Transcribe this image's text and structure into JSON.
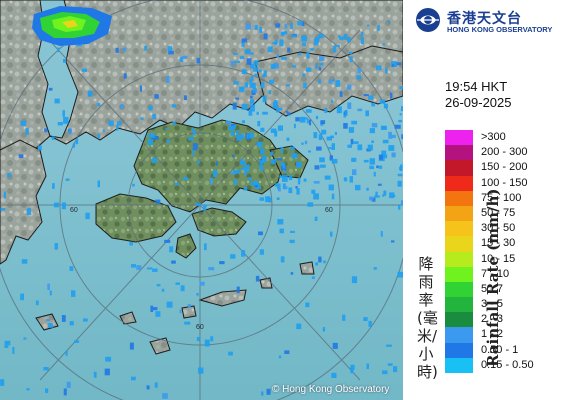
{
  "header": {
    "org_name_zh": "香港天文台",
    "org_name_en": "HONG KONG OBSERVATORY"
  },
  "timestamp": {
    "time": "19:54 HKT",
    "date": "26-09-2025"
  },
  "legend": {
    "title_zh": "降雨率(毫米/小時)",
    "title_en": "Rainfall Rate (mm/h)",
    "items": [
      {
        "label": ">300",
        "color": "#ee22ee"
      },
      {
        "label": "200 - 300",
        "color": "#b4127e"
      },
      {
        "label": "150 - 200",
        "color": "#c3182a"
      },
      {
        "label": "100 - 150",
        "color": "#ef2a1a"
      },
      {
        "label": "75 - 100",
        "color": "#f2750f"
      },
      {
        "label": "50 - 75",
        "color": "#f2a414"
      },
      {
        "label": "30 - 50",
        "color": "#f5c31a"
      },
      {
        "label": "15 - 30",
        "color": "#e8d51c"
      },
      {
        "label": "10 - 15",
        "color": "#b6ec1e"
      },
      {
        "label": "7 - 10",
        "color": "#6ff21e"
      },
      {
        "label": "5 - 7",
        "color": "#30d234"
      },
      {
        "label": "3 - 5",
        "color": "#22b43c"
      },
      {
        "label": "2 - 3",
        "color": "#1a8c40"
      },
      {
        "label": "1 - 2",
        "color": "#3b9af0"
      },
      {
        "label": "0.50 - 1",
        "color": "#1f78e6"
      },
      {
        "label": "0.15 - 0.50",
        "color": "#18c0f4"
      }
    ]
  },
  "map": {
    "range_ring_labels": [
      "60",
      "60",
      "60"
    ],
    "copyright": "© Hong Kong Observatory"
  }
}
